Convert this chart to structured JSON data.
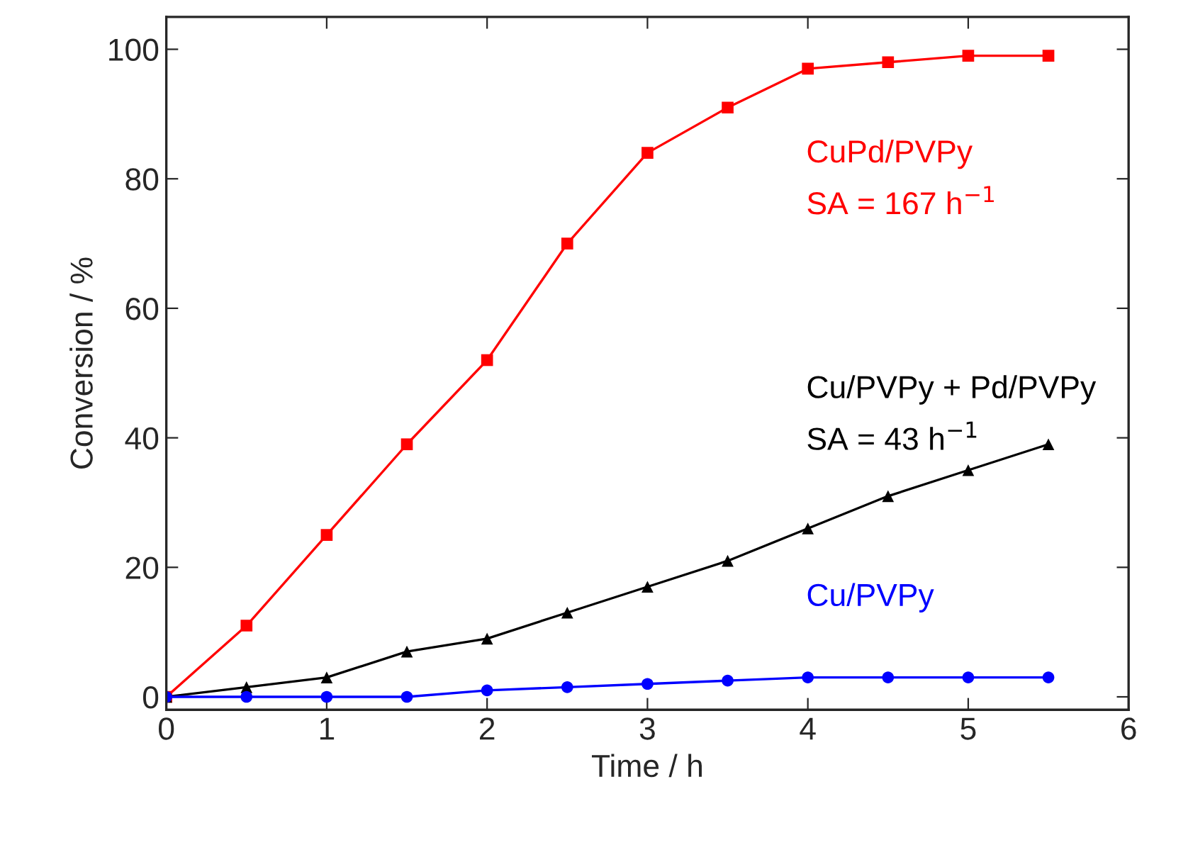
{
  "chart_data": {
    "type": "line",
    "xlabel": "Time / h",
    "ylabel": "Conversion / %",
    "x": [
      0,
      0.5,
      1,
      1.5,
      2,
      2.5,
      3,
      3.5,
      4,
      4.5,
      5,
      5.5
    ],
    "series": [
      {
        "name": "CuPd/PVPy",
        "color": "#ff0000",
        "marker": "square",
        "values": [
          0,
          11,
          25,
          39,
          52,
          70,
          84,
          91,
          97,
          98,
          99,
          99
        ]
      },
      {
        "name": "Cu/PVPy + Pd/PVPy",
        "color": "#000000",
        "marker": "triangle",
        "values": [
          0,
          1.5,
          3,
          7,
          9,
          13,
          17,
          21,
          26,
          31,
          35,
          39
        ]
      },
      {
        "name": "Cu/PVPy",
        "color": "#0000ff",
        "marker": "circle",
        "values": [
          0,
          0,
          0,
          0,
          1,
          1.5,
          2,
          2.5,
          3,
          3,
          3,
          3
        ]
      }
    ],
    "annotations": [
      "SA = 167 h$^{−1}$",
      "SA = 43 h$^{−1}$"
    ],
    "xlim": [
      0,
      6
    ],
    "ylim": [
      -2,
      105
    ],
    "xticks": [
      0,
      1,
      2,
      3,
      4,
      5,
      6
    ],
    "yticks": [
      0,
      20,
      40,
      60,
      80,
      100
    ],
    "grid": false,
    "legend": false,
    "line_style": "solid"
  }
}
